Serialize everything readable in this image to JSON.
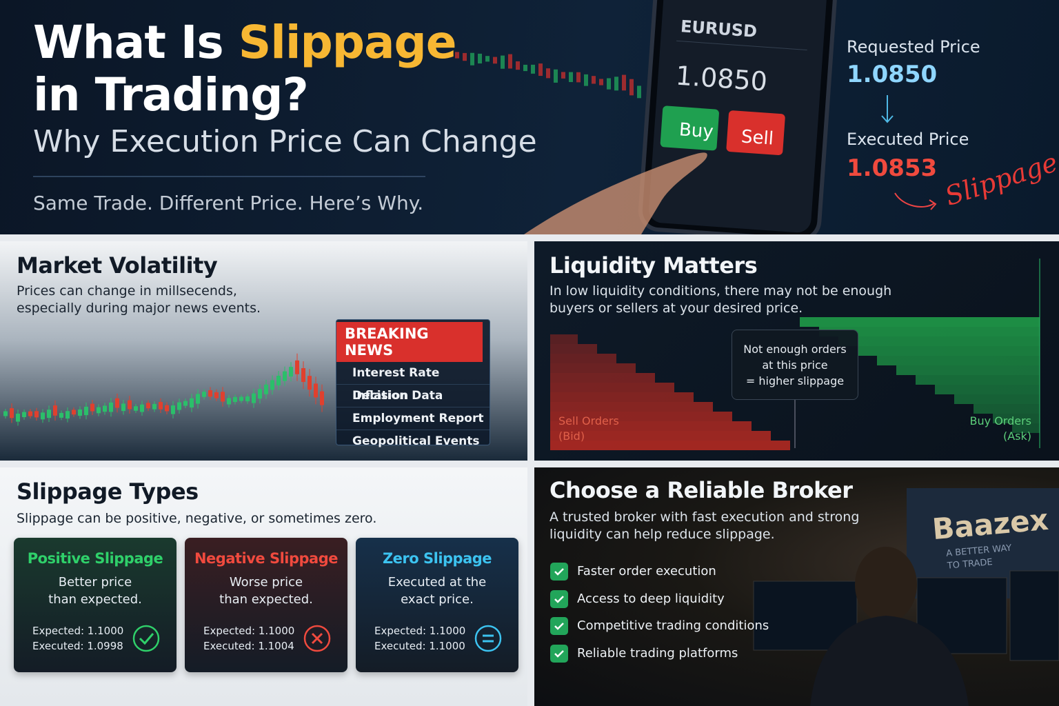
{
  "header": {
    "title_part1": "What Is",
    "title_highlight": "Slippage",
    "title_part2": "in Trading?",
    "subtitle": "Why Execution Price Can Change",
    "tagline": "Same Trade. Different Price. Here’s Why."
  },
  "phone": {
    "symbol": "EURUSD",
    "price": "1.0850",
    "buy": "Buy",
    "sell": "Sell"
  },
  "price_box": {
    "requested_label": "Requested Price",
    "requested_price": "1.0850",
    "executed_label": "Executed Price",
    "executed_price": "1.0853",
    "slippage_label": "Slippage"
  },
  "volatility": {
    "title": "Market Volatility",
    "text": "Prices can change in millsecends, especially during major news events.",
    "news_heading": "BREAKING NEWS",
    "news_items": [
      "Interest Rate Decision",
      "Inflation Data",
      "Employment Report",
      "Geopolitical Events"
    ]
  },
  "liquidity": {
    "title": "Liquidity Matters",
    "text": "In low liquidity conditions, there may not be enough buyers or sellers at your desired price.",
    "callout": [
      "Not enough orders",
      "at this price",
      "= higher slippage"
    ],
    "sell_label": [
      "Sell Orders",
      "(Bid)"
    ],
    "buy_label": [
      "Buy Orders",
      "(Ask)"
    ]
  },
  "types": {
    "title": "Slippage Types",
    "text": "Slippage can be positive, negative, or sometimes zero.",
    "cards": [
      {
        "title": "Positive Slippage",
        "description": [
          "Better price",
          "than expected."
        ],
        "expected": "Expected: 1.1000",
        "executed": "Executed: 1.0998"
      },
      {
        "title": "Negative Slippage",
        "description": [
          "Worse price",
          "than expected."
        ],
        "expected": "Expected: 1.1000",
        "executed": "Executed: 1.1004"
      },
      {
        "title": "Zero Slippage",
        "description": [
          "Executed at the",
          "exact price."
        ],
        "expected": "Expected: 1.1000",
        "executed": "Executed: 1.1000"
      }
    ]
  },
  "broker": {
    "title": "Choose a Reliable Broker",
    "text": "A trusted broker with fast execution and strong liquidity can help reduce slippage.",
    "features": [
      "Faster order execution",
      "Access to deep liquidity",
      "Competitive trading conditions",
      "Reliable trading platforms"
    ],
    "brand": "Baazex",
    "brand_tagline": "A BETTER WAY TO TRADE"
  }
}
